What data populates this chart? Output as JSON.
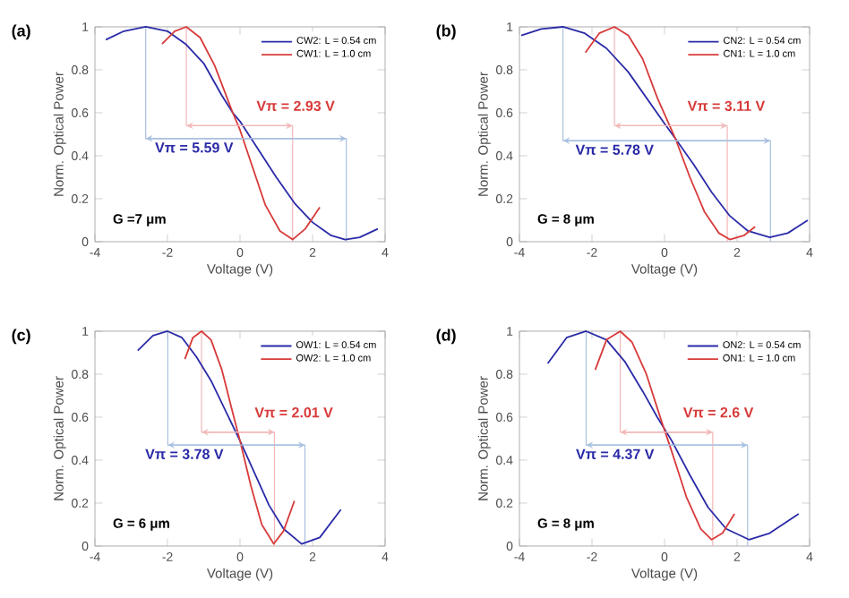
{
  "chart_data": [
    {
      "type": "line",
      "title": "(a)",
      "xlabel": "Voltage (V)",
      "ylabel": "Norm. Optical Power",
      "xlim": [
        -4,
        4
      ],
      "ylim": [
        0,
        1
      ],
      "xticks": [
        -4,
        -2,
        0,
        2,
        4
      ],
      "yticks": [
        0,
        0.2,
        0.4,
        0.6,
        0.8,
        1
      ],
      "legend": "top right",
      "series": [
        {
          "name": "CW2: L = 0.54 cm",
          "color": "#2a2aa8",
          "x": [
            -3.7,
            -3.2,
            -2.6,
            -2.0,
            -1.5,
            -1.0,
            -0.5,
            -0.2,
            0,
            0.5,
            1.0,
            1.5,
            2.0,
            2.5,
            2.9,
            3.3,
            3.8
          ],
          "values": [
            0.94,
            0.98,
            1.0,
            0.98,
            0.92,
            0.83,
            0.68,
            0.6,
            0.56,
            0.43,
            0.3,
            0.18,
            0.09,
            0.03,
            0.01,
            0.02,
            0.06
          ]
        },
        {
          "name": "CW1: L = 1.0 cm",
          "color": "#d83a3a",
          "x": [
            -2.15,
            -1.8,
            -1.48,
            -1.1,
            -0.7,
            -0.2,
            0,
            0.3,
            0.7,
            1.1,
            1.45,
            1.8,
            2.2
          ],
          "values": [
            0.92,
            0.98,
            1.0,
            0.95,
            0.82,
            0.6,
            0.52,
            0.37,
            0.17,
            0.05,
            0.01,
            0.06,
            0.16
          ]
        },
        {
          "type": "line",
          "color": "#a8c0e0",
          "x": [
            -2.6,
            -2.6,
            2.93,
            2.93
          ],
          "values": [
            1.0,
            0.48,
            0.48,
            0.0
          ]
        },
        {
          "type": "line",
          "color": "#f2b8b8",
          "x": [
            -1.48,
            -1.48,
            1.45,
            1.45
          ],
          "values": [
            1.0,
            0.54,
            0.54,
            0.0
          ]
        }
      ],
      "annotations": [
        {
          "text": "Vπ = 5.59 V",
          "x": 0.17,
          "y": 0.48
        },
        {
          "text": "Vπ = 2.93 V",
          "x": 0,
          "y": 0.54
        },
        "G =7 μm"
      ]
    },
    {
      "type": "line",
      "title": "(b)",
      "xlabel": "Voltage (V)",
      "ylabel": "Norm. Optical Power",
      "xlim": [
        -4,
        4
      ],
      "ylim": [
        0,
        1
      ],
      "xticks": [
        -4,
        -2,
        0,
        2,
        4
      ],
      "yticks": [
        0,
        0.2,
        0.4,
        0.6,
        0.8,
        1
      ],
      "legend": "top right",
      "series": [
        {
          "name": "CN2: L = 0.54 cm",
          "color": "#2a2aa8",
          "x": [
            -3.95,
            -3.4,
            -2.8,
            -2.2,
            -1.6,
            -1.0,
            -0.5,
            0,
            0.3,
            0.8,
            1.3,
            1.8,
            2.3,
            2.9,
            3.4,
            3.95
          ],
          "values": [
            0.96,
            0.99,
            1.0,
            0.97,
            0.9,
            0.79,
            0.67,
            0.55,
            0.48,
            0.36,
            0.23,
            0.12,
            0.05,
            0.02,
            0.04,
            0.1
          ]
        },
        {
          "name": "CN1: L = 1.0 cm",
          "color": "#d83a3a",
          "x": [
            -2.18,
            -1.8,
            -1.38,
            -1.0,
            -0.6,
            -0.2,
            0.3,
            0.7,
            1.1,
            1.5,
            1.8,
            2.2,
            2.5
          ],
          "values": [
            0.88,
            0.97,
            1.0,
            0.96,
            0.85,
            0.67,
            0.48,
            0.3,
            0.14,
            0.04,
            0.01,
            0.03,
            0.07
          ]
        },
        {
          "type": "line",
          "color": "#a8c0e0",
          "x": [
            -2.8,
            -2.8,
            2.92,
            2.92
          ],
          "values": [
            1.0,
            0.47,
            0.47,
            0.0
          ]
        },
        {
          "type": "line",
          "color": "#f2b8b8",
          "x": [
            -1.38,
            -1.38,
            1.73,
            1.73
          ],
          "values": [
            1.0,
            0.54,
            0.54,
            0.0
          ]
        }
      ],
      "annotations": [
        {
          "text": "Vπ = 5.78 V",
          "x": 0.06,
          "y": 0.47
        },
        {
          "text": "Vπ = 3.11 V",
          "x": 0.18,
          "y": 0.54
        },
        "G = 8 μm"
      ]
    },
    {
      "type": "line",
      "title": "(c)",
      "xlabel": "Voltage (V)",
      "ylabel": "Norm. Optical Power",
      "xlim": [
        -4,
        4
      ],
      "ylim": [
        0,
        1
      ],
      "xticks": [
        -4,
        -2,
        0,
        2,
        4
      ],
      "yticks": [
        0,
        0.2,
        0.4,
        0.6,
        0.8,
        1
      ],
      "legend": "top right",
      "series": [
        {
          "name": "OW1: L = 0.54 cm",
          "color": "#2a2aa8",
          "x": [
            -2.82,
            -2.4,
            -2.0,
            -1.6,
            -1.2,
            -0.8,
            -0.4,
            0,
            0.4,
            0.8,
            1.2,
            1.7,
            2.2,
            2.78
          ],
          "values": [
            0.91,
            0.98,
            1.0,
            0.97,
            0.88,
            0.77,
            0.63,
            0.49,
            0.34,
            0.19,
            0.08,
            0.01,
            0.04,
            0.17
          ]
        },
        {
          "name": "OW2: L = 1.0 cm",
          "color": "#d83a3a",
          "x": [
            -1.52,
            -1.3,
            -1.06,
            -0.8,
            -0.5,
            -0.2,
            0,
            0.3,
            0.6,
            0.93,
            1.2,
            1.5
          ],
          "values": [
            0.87,
            0.97,
            1.0,
            0.96,
            0.82,
            0.62,
            0.49,
            0.28,
            0.1,
            0.01,
            0.07,
            0.21
          ]
        },
        {
          "type": "line",
          "color": "#a8c0e0",
          "x": [
            -1.99,
            -1.99,
            1.79,
            1.79
          ],
          "values": [
            1.0,
            0.47,
            0.47,
            0.0
          ]
        },
        {
          "type": "line",
          "color": "#f2b8b8",
          "x": [
            -1.06,
            -1.06,
            0.95,
            0.95
          ],
          "values": [
            1.0,
            0.53,
            0.53,
            0.0
          ]
        }
      ],
      "annotations": [
        {
          "text": "Vπ = 3.78 V",
          "x": -0.1,
          "y": 0.47
        },
        {
          "text": "Vπ = 2.01 V",
          "x": -0.05,
          "y": 0.53
        },
        "G = 6 μm"
      ]
    },
    {
      "type": "line",
      "title": "(d)",
      "xlabel": "Voltage (V)",
      "ylabel": "Norm. Optical Power",
      "xlim": [
        -4,
        4
      ],
      "ylim": [
        0,
        1
      ],
      "xticks": [
        -4,
        -2,
        0,
        2,
        4
      ],
      "yticks": [
        0,
        0.2,
        0.4,
        0.6,
        0.8,
        1
      ],
      "legend": "top right",
      "series": [
        {
          "name": "ON2: L = 0.54 cm",
          "color": "#2a2aa8",
          "x": [
            -3.22,
            -2.7,
            -2.16,
            -1.6,
            -1.1,
            -0.6,
            -0.2,
            0.2,
            0.7,
            1.2,
            1.7,
            2.33,
            2.9,
            3.7
          ],
          "values": [
            0.85,
            0.97,
            1.0,
            0.96,
            0.86,
            0.72,
            0.6,
            0.49,
            0.33,
            0.18,
            0.08,
            0.03,
            0.06,
            0.15
          ]
        },
        {
          "name": "ON1: L = 1.0 cm",
          "color": "#d83a3a",
          "x": [
            -1.91,
            -1.6,
            -1.22,
            -0.9,
            -0.5,
            -0.1,
            0.2,
            0.6,
            1.0,
            1.3,
            1.6,
            1.93
          ],
          "values": [
            0.82,
            0.96,
            1.0,
            0.95,
            0.8,
            0.59,
            0.44,
            0.23,
            0.08,
            0.03,
            0.06,
            0.15
          ]
        },
        {
          "type": "line",
          "color": "#a8c0e0",
          "x": [
            -2.16,
            -2.16,
            2.29,
            2.29
          ],
          "values": [
            1.0,
            0.47,
            0.47,
            0.0
          ]
        },
        {
          "type": "line",
          "color": "#f2b8b8",
          "x": [
            -1.22,
            -1.22,
            1.33,
            1.33
          ],
          "values": [
            1.0,
            0.53,
            0.53,
            0.0
          ]
        }
      ],
      "annotations": [
        {
          "text": "Vπ = 4.37 V",
          "x": 0.07,
          "y": 0.47
        },
        {
          "text": "Vπ = 2.6 V",
          "x": 0.06,
          "y": 0.53
        },
        "G = 8 μm"
      ]
    }
  ]
}
